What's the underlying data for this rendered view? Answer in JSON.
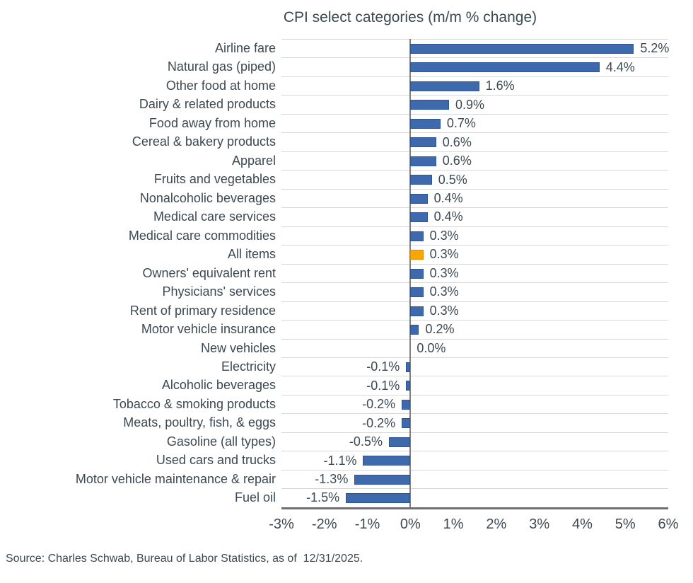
{
  "title": "CPI select categories (m/m % change)",
  "source": "Source: Charles Schwab, Bureau of Labor Statistics, as of  12/31/2025.",
  "colors": {
    "bar": "#3E6AAD",
    "bar_border": "#2F5590",
    "highlight": "#F9A602",
    "highlight_border": "#DF8F00",
    "grid": "#D8D8D8",
    "zero_line": "#808080",
    "axis": "#6E6E6E",
    "text": "#3C4852"
  },
  "chart_data": {
    "type": "bar",
    "orientation": "horizontal",
    "title": "CPI select categories (m/m % change)",
    "xlabel": "",
    "ylabel": "",
    "xlim": [
      -3,
      6
    ],
    "grid": "horizontal-row-separators",
    "legend": "none",
    "highlight_category": "All items",
    "highlight_index": 11,
    "x_ticks": [
      "-3%",
      "-2%",
      "-1%",
      "0%",
      "1%",
      "2%",
      "3%",
      "4%",
      "5%",
      "6%"
    ],
    "categories": [
      "Airline fare",
      "Natural gas (piped)",
      "Other food at home",
      "Dairy & related products",
      "Food away from home",
      "Cereal & bakery products",
      "Apparel",
      "Fruits and vegetables",
      "Nonalcoholic beverages",
      "Medical care services",
      "Medical care commodities",
      "All items",
      "Owners' equivalent rent",
      "Physicians' services",
      "Rent of primary residence",
      "Motor vehicle insurance",
      "New vehicles",
      "Electricity",
      "Alcoholic beverages",
      "Tobacco & smoking products",
      "Meats, poultry, fish, & eggs",
      "Gasoline (all types)",
      "Used cars and trucks",
      "Motor vehicle maintenance & repair",
      "Fuel oil"
    ],
    "values": [
      5.2,
      4.4,
      1.6,
      0.9,
      0.7,
      0.6,
      0.6,
      0.5,
      0.4,
      0.4,
      0.3,
      0.3,
      0.3,
      0.3,
      0.3,
      0.2,
      0.0,
      -0.1,
      -0.1,
      -0.2,
      -0.2,
      -0.5,
      -1.1,
      -1.3,
      -1.5
    ],
    "value_labels": [
      "5.2%",
      "4.4%",
      "1.6%",
      "0.9%",
      "0.7%",
      "0.6%",
      "0.6%",
      "0.5%",
      "0.4%",
      "0.4%",
      "0.3%",
      "0.3%",
      "0.3%",
      "0.3%",
      "0.3%",
      "0.2%",
      "0.0%",
      "-0.1%",
      "-0.1%",
      "-0.2%",
      "-0.2%",
      "-0.5%",
      "-1.1%",
      "-1.3%",
      "-1.5%"
    ]
  }
}
